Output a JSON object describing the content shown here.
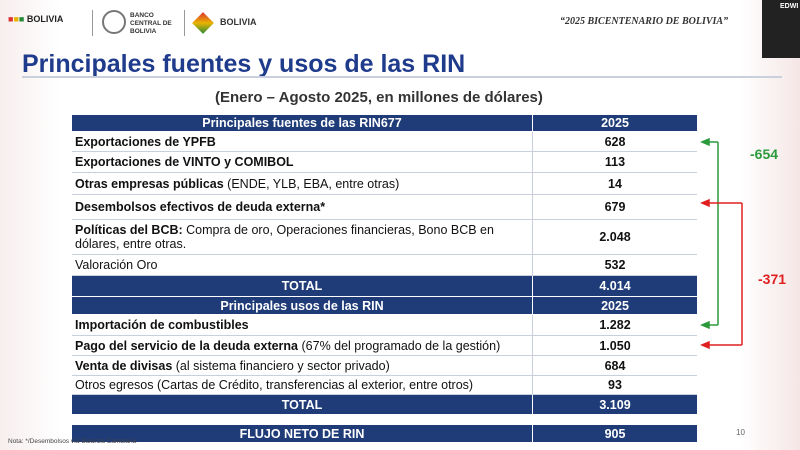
{
  "header": {
    "logo_1": "BOLIVIA",
    "logo_2": "BANCO CENTRAL DE BOLIVIA",
    "logo_3": "BOLIVIA",
    "motto": "“2025 BICENTENARIO DE BOLIVIA”",
    "participant": "EDWI"
  },
  "slide": {
    "title": "Principales fuentes y usos de las RIN",
    "subtitle": "(Enero – Agosto 2025, en millones de dólares)",
    "sources": {
      "header": [
        "Principales fuentes de las RIN677",
        "2025"
      ],
      "rows": [
        {
          "bold": "Exportaciones de YPFB",
          "value": "628"
        },
        {
          "bold": "Exportaciones de VINTO y COMIBOL",
          "value": "113"
        },
        {
          "bold": "Otras empresas públicas",
          "plain": "(ENDE, YLB, EBA, entre otras)",
          "value": "14"
        },
        {
          "bold": "Desembolsos efectivos de deuda externa*",
          "value": "679"
        },
        {
          "bold": "Políticas del BCB:",
          "plain": "Compra de oro, Operaciones financieras, Bono BCB en dólares, entre otras.",
          "value": "2.048"
        },
        {
          "plain": "Valoración Oro",
          "value": "532"
        }
      ],
      "total": [
        "TOTAL",
        "4.014"
      ]
    },
    "uses": {
      "header": [
        "Principales usos de las RIN",
        "2025"
      ],
      "rows": [
        {
          "bold": "Importación de combustibles",
          "value": "1.282"
        },
        {
          "bold": "Pago del servicio de la deuda externa",
          "plain": "(67% del programado de la gestión)",
          "value": "1.050"
        },
        {
          "bold": "Venta de divisas",
          "plain": "(al sistema financiero y sector privado)",
          "value": "684"
        },
        {
          "plain": "Otros egresos (Cartas de Crédito, transferencias al exterior, entre otros)",
          "value": "93"
        }
      ],
      "total": [
        "TOTAL",
        "3.109"
      ]
    },
    "net_flow": [
      "FLUJO NETO DE RIN",
      "905"
    ],
    "annotations": {
      "green": "-654",
      "red": "-371"
    },
    "note": "Nota: */Desembolsos vía Balanza Cambiaria",
    "page_number": "10"
  }
}
